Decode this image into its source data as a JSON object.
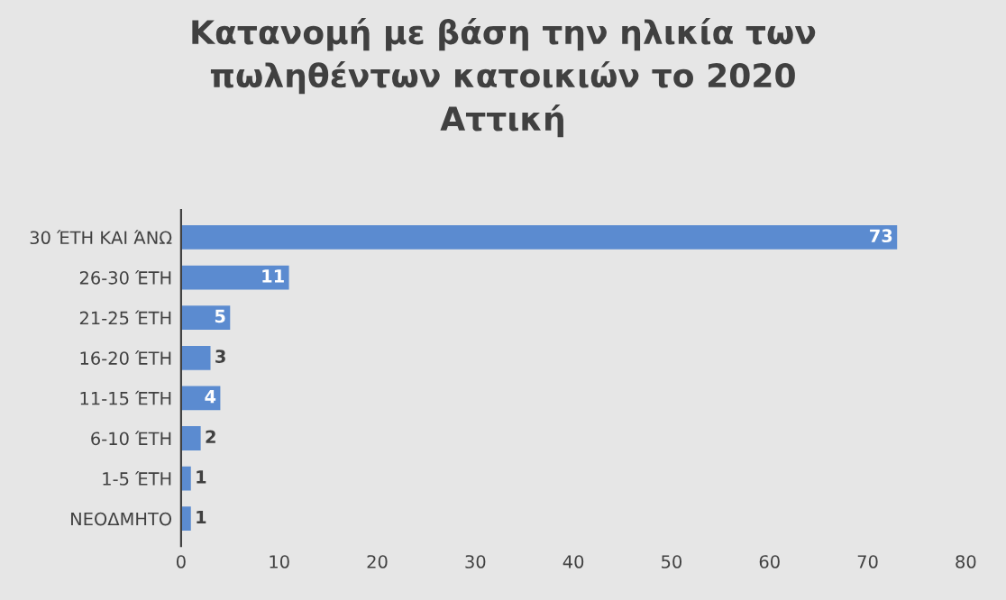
{
  "chart_data": {
    "type": "bar",
    "orientation": "horizontal",
    "title": "Κατανομή με βάση την ηλικία των\nπωληθέντων κατοικιών το 2020\nΑττική",
    "categories": [
      "30 ΈΤΗ ΚΑΙ ΆΝΩ",
      "26-30 ΈΤΗ",
      "21-25 ΈΤΗ",
      "16-20 ΈΤΗ",
      "11-15 ΈΤΗ",
      "6-10 ΈΤΗ",
      "1-5 ΈΤΗ",
      "ΝΕΟΔΜΗΤΟ"
    ],
    "values": [
      73,
      11,
      5,
      3,
      4,
      2,
      1,
      1
    ],
    "color": "#5b8bd0",
    "data_labels": true,
    "xlim": [
      0,
      80
    ],
    "xticks": [
      0,
      10,
      20,
      30,
      40,
      50,
      60,
      70,
      80
    ],
    "grid": false,
    "legend": false
  }
}
